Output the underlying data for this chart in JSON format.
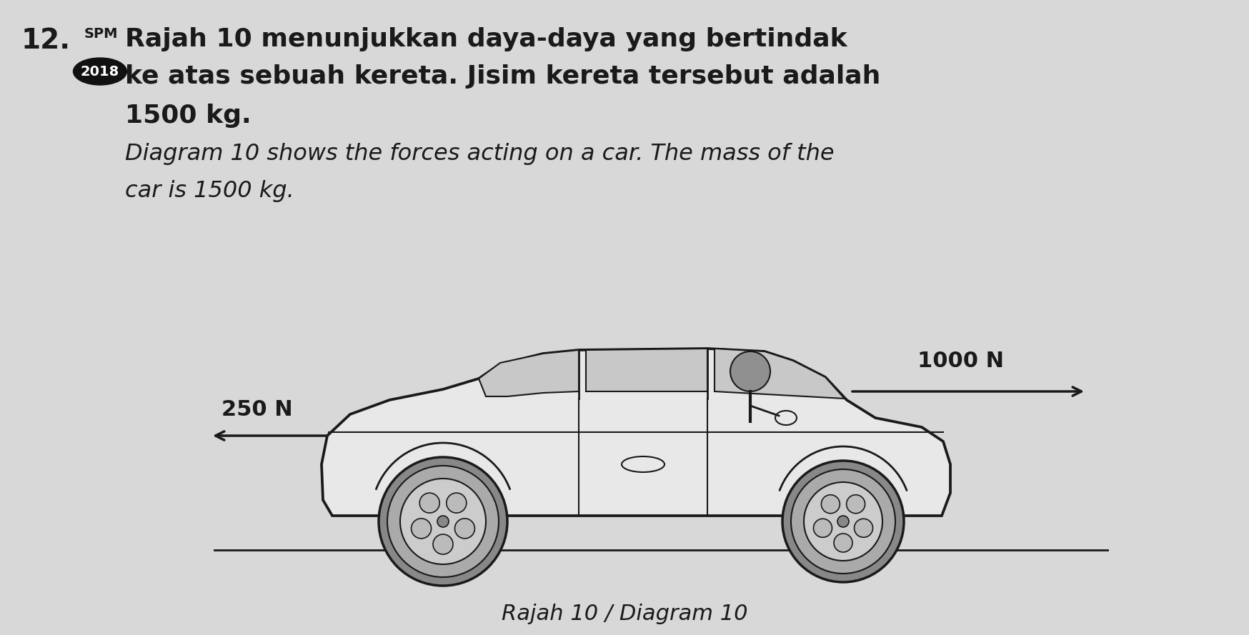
{
  "background_color": "#d8d8d8",
  "question_number": "12.",
  "spm_label": "SPM",
  "year_label": "2018",
  "malay_text_line1": "Rajah 10 menunjukkan daya-daya yang bertindak",
  "malay_text_line2": "ke atas sebuah kereta. Jisim kereta tersebut adalah",
  "malay_text_line3": "1500 kg.",
  "english_text_line1": "Diagram 10 shows the forces acting on a car. The mass of the",
  "english_text_line2": "car is 1500 kg.",
  "caption": "Rajah 10 / Diagram 10",
  "force_right_label": "1000 N",
  "force_left_label": "250 N",
  "text_color": "#1a1a1a",
  "car_color": "#1a1a1a",
  "car_fill": "#e8e8e8",
  "wheel_fill": "#b0b0b0",
  "window_fill": "#c8c8c8"
}
